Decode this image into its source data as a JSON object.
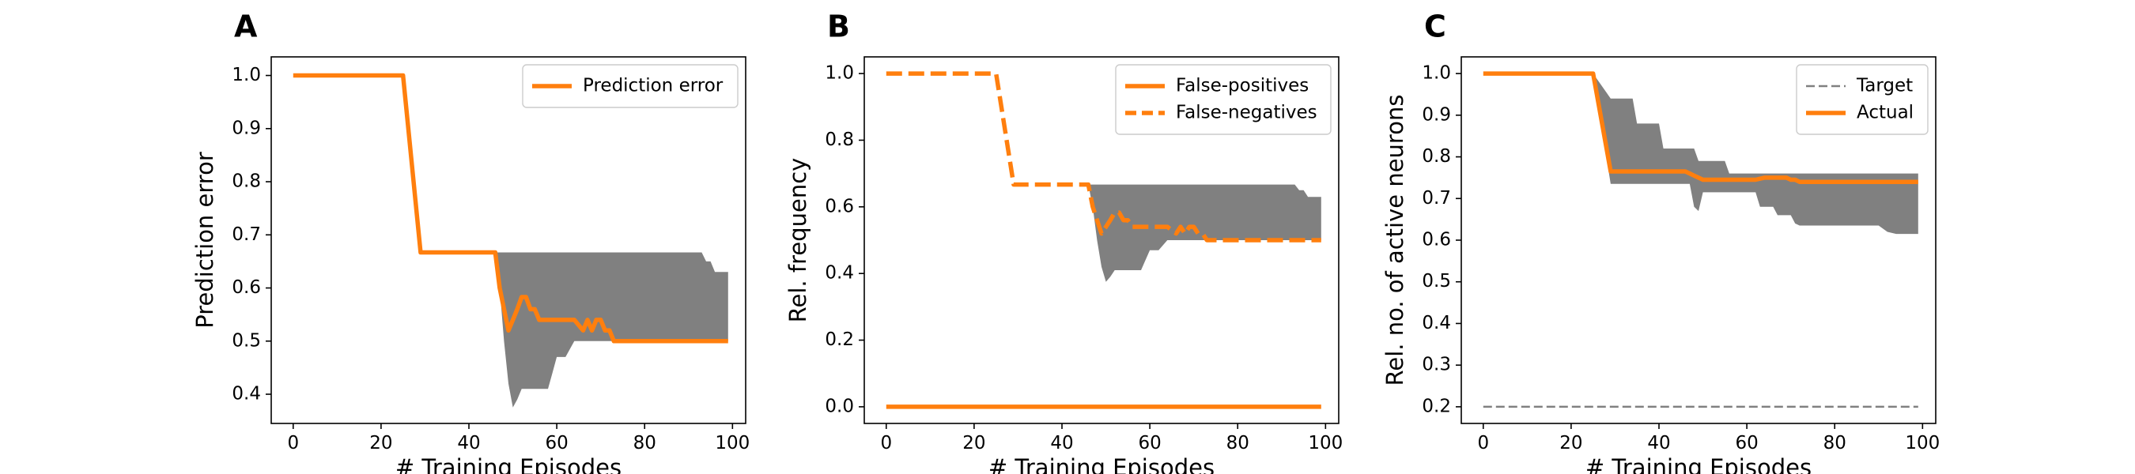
{
  "chart_data": [
    {
      "type": "line",
      "panel": "A",
      "xlabel": "# Training Episodes",
      "ylabel": "Prediction error",
      "xlim": [
        -5,
        103
      ],
      "ylim": [
        0.345,
        1.035
      ],
      "xticks": [
        0,
        20,
        40,
        60,
        80,
        100
      ],
      "yticks": [
        0.4,
        0.5,
        0.6,
        0.7,
        0.8,
        0.9,
        1.0
      ],
      "tick_labels_y": [
        "0.4",
        "0.5",
        "0.6",
        "0.7",
        "0.8",
        "0.9",
        "1.0"
      ],
      "tick_labels_x": [
        "0",
        "20",
        "40",
        "60",
        "80",
        "100"
      ],
      "legend_position": "top-right",
      "series": [
        {
          "name": "Prediction error",
          "style": "solid",
          "color": "#ff7f0e",
          "x": [
            0,
            25,
            29,
            46,
            47,
            48,
            49,
            50,
            51,
            52,
            53,
            54,
            55,
            56,
            57,
            58,
            60,
            62,
            64,
            66,
            67,
            68,
            69,
            70,
            71,
            72,
            73,
            75,
            80,
            85,
            90,
            95,
            99
          ],
          "values": [
            1.0,
            1.0,
            0.667,
            0.667,
            0.6,
            0.56,
            0.52,
            0.54,
            0.56,
            0.583,
            0.583,
            0.56,
            0.56,
            0.54,
            0.54,
            0.54,
            0.54,
            0.54,
            0.54,
            0.52,
            0.54,
            0.52,
            0.54,
            0.54,
            0.52,
            0.52,
            0.5,
            0.5,
            0.5,
            0.5,
            0.5,
            0.5,
            0.5
          ]
        }
      ],
      "band": {
        "color": "#808080",
        "x": [
          46,
          47,
          48,
          49,
          50,
          51,
          52,
          53,
          54,
          55,
          56,
          57,
          58,
          59,
          60,
          62,
          64,
          66,
          68,
          70,
          72,
          75,
          80,
          90,
          93,
          94,
          95,
          96,
          97,
          98,
          99
        ],
        "upper": [
          0.667,
          0.667,
          0.667,
          0.667,
          0.667,
          0.667,
          0.667,
          0.667,
          0.667,
          0.667,
          0.667,
          0.667,
          0.667,
          0.667,
          0.667,
          0.667,
          0.667,
          0.667,
          0.667,
          0.667,
          0.667,
          0.667,
          0.667,
          0.667,
          0.667,
          0.65,
          0.65,
          0.63,
          0.63,
          0.63,
          0.63
        ],
        "lower": [
          0.667,
          0.6,
          0.5,
          0.42,
          0.375,
          0.39,
          0.41,
          0.41,
          0.41,
          0.41,
          0.41,
          0.41,
          0.41,
          0.44,
          0.47,
          0.47,
          0.5,
          0.5,
          0.5,
          0.5,
          0.5,
          0.5,
          0.5,
          0.5,
          0.5,
          0.5,
          0.5,
          0.5,
          0.5,
          0.5,
          0.5
        ]
      }
    },
    {
      "type": "line",
      "panel": "B",
      "xlabel": "# Training Episodes",
      "ylabel": "Rel. frequency",
      "xlim": [
        -5,
        103
      ],
      "ylim": [
        -0.05,
        1.05
      ],
      "xticks": [
        0,
        20,
        40,
        60,
        80,
        100
      ],
      "yticks": [
        0.0,
        0.2,
        0.4,
        0.6,
        0.8,
        1.0
      ],
      "tick_labels_y": [
        "0.0",
        "0.2",
        "0.4",
        "0.6",
        "0.8",
        "1.0"
      ],
      "tick_labels_x": [
        "0",
        "20",
        "40",
        "60",
        "80",
        "100"
      ],
      "legend_position": "top-right",
      "series": [
        {
          "name": "False-positives",
          "style": "solid",
          "color": "#ff7f0e",
          "x": [
            0,
            99
          ],
          "values": [
            0.0,
            0.0
          ]
        },
        {
          "name": "False-negatives",
          "style": "dashed",
          "color": "#ff7f0e",
          "x": [
            0,
            25,
            29,
            46,
            47,
            48,
            49,
            50,
            51,
            52,
            53,
            54,
            55,
            56,
            57,
            58,
            60,
            62,
            64,
            66,
            67,
            68,
            69,
            70,
            71,
            72,
            73,
            75,
            80,
            85,
            90,
            95,
            99
          ],
          "values": [
            1.0,
            1.0,
            0.667,
            0.667,
            0.6,
            0.56,
            0.52,
            0.54,
            0.56,
            0.583,
            0.583,
            0.56,
            0.56,
            0.54,
            0.54,
            0.54,
            0.54,
            0.54,
            0.54,
            0.52,
            0.54,
            0.52,
            0.54,
            0.54,
            0.52,
            0.52,
            0.5,
            0.5,
            0.5,
            0.5,
            0.5,
            0.5,
            0.5
          ]
        }
      ],
      "band": {
        "color": "#808080",
        "x": [
          46,
          47,
          48,
          49,
          50,
          51,
          52,
          53,
          54,
          55,
          56,
          57,
          58,
          59,
          60,
          62,
          64,
          66,
          68,
          70,
          72,
          75,
          80,
          90,
          93,
          94,
          95,
          96,
          97,
          98,
          99
        ],
        "upper": [
          0.667,
          0.667,
          0.667,
          0.667,
          0.667,
          0.667,
          0.667,
          0.667,
          0.667,
          0.667,
          0.667,
          0.667,
          0.667,
          0.667,
          0.667,
          0.667,
          0.667,
          0.667,
          0.667,
          0.667,
          0.667,
          0.667,
          0.667,
          0.667,
          0.667,
          0.65,
          0.65,
          0.63,
          0.63,
          0.63,
          0.63
        ],
        "lower": [
          0.667,
          0.6,
          0.5,
          0.42,
          0.375,
          0.39,
          0.41,
          0.41,
          0.41,
          0.41,
          0.41,
          0.41,
          0.41,
          0.44,
          0.47,
          0.47,
          0.5,
          0.5,
          0.5,
          0.5,
          0.5,
          0.5,
          0.5,
          0.5,
          0.5,
          0.5,
          0.5,
          0.5,
          0.5,
          0.5,
          0.5
        ]
      }
    },
    {
      "type": "line",
      "panel": "C",
      "xlabel": "# Training Episodes",
      "ylabel": "Rel. no. of active neurons",
      "xlim": [
        -5,
        103
      ],
      "ylim": [
        0.16,
        1.04
      ],
      "xticks": [
        0,
        20,
        40,
        60,
        80,
        100
      ],
      "yticks": [
        0.2,
        0.3,
        0.4,
        0.5,
        0.6,
        0.7,
        0.8,
        0.9,
        1.0
      ],
      "tick_labels_y": [
        "0.2",
        "0.3",
        "0.4",
        "0.5",
        "0.6",
        "0.7",
        "0.8",
        "0.9",
        "1.0"
      ],
      "tick_labels_x": [
        "0",
        "20",
        "40",
        "60",
        "80",
        "100"
      ],
      "legend_position": "top-right",
      "series": [
        {
          "name": "Target",
          "style": "dashed-thin",
          "color": "#808080",
          "x": [
            0,
            99
          ],
          "values": [
            0.2,
            0.2
          ]
        },
        {
          "name": "Actual",
          "style": "solid",
          "color": "#ff7f0e",
          "x": [
            0,
            25,
            29,
            46,
            47,
            48,
            49,
            50,
            51,
            52,
            53,
            54,
            55,
            56,
            57,
            58,
            60,
            62,
            64,
            66,
            67,
            68,
            69,
            70,
            71,
            72,
            73,
            75,
            80,
            85,
            90,
            95,
            99
          ],
          "values": [
            1.0,
            1.0,
            0.765,
            0.765,
            0.76,
            0.755,
            0.75,
            0.745,
            0.745,
            0.745,
            0.745,
            0.745,
            0.745,
            0.745,
            0.745,
            0.745,
            0.745,
            0.745,
            0.75,
            0.75,
            0.75,
            0.75,
            0.75,
            0.745,
            0.745,
            0.74,
            0.74,
            0.74,
            0.74,
            0.74,
            0.74,
            0.74,
            0.74
          ]
        }
      ],
      "band": {
        "color": "#808080",
        "x": [
          25,
          29,
          30,
          34,
          35,
          40,
          41,
          42,
          43,
          44,
          45,
          46,
          47,
          48,
          49,
          50,
          51,
          52,
          55,
          56,
          57,
          58,
          60,
          62,
          63,
          64,
          66,
          67,
          69,
          70,
          71,
          72,
          74,
          78,
          79,
          80,
          85,
          90,
          92,
          94,
          96,
          98,
          99
        ],
        "upper": [
          1.0,
          0.94,
          0.94,
          0.94,
          0.88,
          0.88,
          0.82,
          0.82,
          0.82,
          0.82,
          0.82,
          0.82,
          0.82,
          0.82,
          0.79,
          0.79,
          0.79,
          0.79,
          0.79,
          0.76,
          0.76,
          0.76,
          0.76,
          0.76,
          0.76,
          0.76,
          0.76,
          0.76,
          0.76,
          0.76,
          0.76,
          0.76,
          0.76,
          0.76,
          0.76,
          0.76,
          0.76,
          0.76,
          0.76,
          0.76,
          0.76,
          0.76,
          0.76
        ],
        "lower": [
          1.0,
          0.735,
          0.735,
          0.735,
          0.735,
          0.735,
          0.735,
          0.735,
          0.735,
          0.735,
          0.735,
          0.735,
          0.735,
          0.68,
          0.67,
          0.715,
          0.715,
          0.715,
          0.715,
          0.715,
          0.715,
          0.715,
          0.715,
          0.715,
          0.68,
          0.68,
          0.68,
          0.66,
          0.66,
          0.66,
          0.64,
          0.635,
          0.635,
          0.635,
          0.635,
          0.635,
          0.635,
          0.635,
          0.62,
          0.615,
          0.615,
          0.615,
          0.615
        ]
      }
    }
  ]
}
